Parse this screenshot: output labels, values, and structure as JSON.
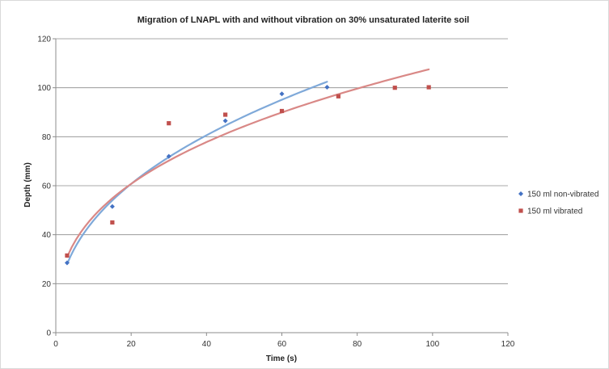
{
  "chart_data": {
    "type": "scatter",
    "title": "Migration of LNAPL with and without vibration on 30% unsaturated laterite soil",
    "xlabel": "Time (s)",
    "ylabel": "Depth (mm)",
    "xlim": [
      0,
      120
    ],
    "ylim": [
      0,
      120
    ],
    "x_ticks": [
      0,
      20,
      40,
      60,
      80,
      100,
      120
    ],
    "y_ticks": [
      0,
      20,
      40,
      60,
      80,
      100,
      120
    ],
    "grid": "horizontal",
    "legend_position": "right",
    "series": [
      {
        "name": "150 ml non-vibrated",
        "color": "#4472c4",
        "trend_color": "#7fa9d9",
        "marker": "diamond",
        "x": [
          3,
          15,
          30,
          45,
          60,
          72
        ],
        "y": [
          28.5,
          51.5,
          72,
          86.5,
          97.5,
          100.2
        ],
        "trendline": {
          "type": "power",
          "x_range": [
            3,
            72
          ]
        }
      },
      {
        "name": "150 ml vibrated",
        "color": "#c0504d",
        "trend_color": "#d98886",
        "marker": "square",
        "x": [
          3,
          15,
          30,
          45,
          60,
          75,
          90,
          99
        ],
        "y": [
          31.5,
          45,
          85.5,
          89,
          90.5,
          96.5,
          100,
          100.2
        ],
        "trendline": {
          "type": "power",
          "x_range": [
            3,
            99
          ]
        }
      }
    ]
  }
}
